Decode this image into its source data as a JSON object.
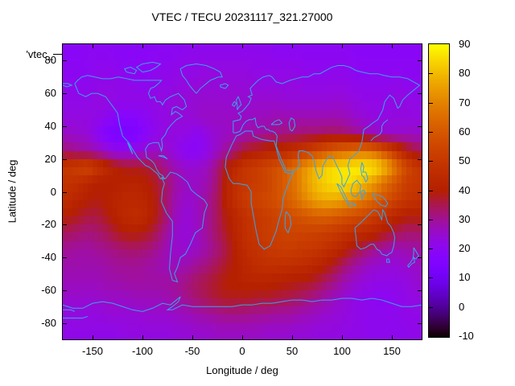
{
  "title": "VTEC / TECU 20231117_321.27000",
  "key_label": "'vtec_",
  "axes": {
    "xlabel": "Longitude / deg",
    "ylabel": "Latitude / deg",
    "x_ticks": [
      -150,
      -100,
      -50,
      0,
      50,
      100,
      150
    ],
    "y_ticks": [
      80,
      60,
      40,
      20,
      0,
      -20,
      -40,
      -60,
      -80
    ],
    "x_range": [
      -180,
      180
    ],
    "y_range": [
      -90,
      90
    ]
  },
  "colorbar": {
    "ticks": [
      90,
      80,
      70,
      60,
      50,
      40,
      30,
      20,
      10,
      0,
      -10
    ],
    "range": [
      -10,
      90
    ],
    "palette": "gnuplot default (rgbformulae 7,5,15): black-purple-violet-magenta-red-orange-yellow"
  },
  "map": {
    "coastline_color": "#38a5e8"
  },
  "chart_data": {
    "type": "heatmap",
    "title": "VTEC / TECU 20231117_321.27000",
    "xlabel": "Longitude / deg",
    "ylabel": "Latitude / deg",
    "xlim": [
      -180,
      180
    ],
    "ylim": [
      -90,
      90
    ],
    "zlim": [
      -10,
      90
    ],
    "units": "TECU",
    "lon_centers": [
      -175,
      -165,
      -155,
      -145,
      -135,
      -125,
      -115,
      -105,
      -95,
      -85,
      -75,
      -65,
      -55,
      -45,
      -35,
      -25,
      -15,
      -5,
      5,
      15,
      25,
      35,
      45,
      55,
      65,
      75,
      85,
      95,
      105,
      115,
      125,
      135,
      145,
      155,
      165,
      175
    ],
    "lat_centers": [
      85,
      75,
      65,
      55,
      45,
      35,
      25,
      15,
      5,
      -5,
      -15,
      -25,
      -35,
      -45,
      -55,
      -65,
      -75,
      -85
    ],
    "values": [
      [
        19,
        19,
        20,
        20,
        20,
        19,
        19,
        19,
        19,
        20,
        20,
        20,
        21,
        21,
        21,
        21,
        21,
        21,
        21,
        21,
        21,
        20,
        20,
        20,
        20,
        20,
        20,
        20,
        20,
        19,
        19,
        19,
        19,
        19,
        19,
        19
      ],
      [
        20,
        20,
        20,
        21,
        21,
        21,
        20,
        20,
        20,
        21,
        21,
        22,
        22,
        22,
        23,
        23,
        23,
        23,
        23,
        22,
        22,
        22,
        22,
        22,
        21,
        21,
        21,
        21,
        21,
        20,
        20,
        20,
        20,
        20,
        20,
        20
      ],
      [
        21,
        21,
        21,
        22,
        22,
        22,
        22,
        21,
        21,
        22,
        22,
        23,
        23,
        24,
        24,
        24,
        24,
        24,
        24,
        23,
        23,
        23,
        23,
        23,
        22,
        22,
        22,
        22,
        22,
        21,
        21,
        21,
        21,
        22,
        21,
        21
      ],
      [
        22,
        22,
        22,
        23,
        23,
        22,
        22,
        22,
        22,
        23,
        23,
        24,
        24,
        25,
        25,
        25,
        25,
        25,
        25,
        25,
        25,
        25,
        24,
        24,
        24,
        24,
        24,
        25,
        24,
        23,
        22,
        22,
        22,
        23,
        23,
        22
      ],
      [
        23,
        23,
        23,
        22,
        20,
        18,
        17,
        18,
        20,
        22,
        23,
        24,
        24,
        25,
        26,
        26,
        26,
        26,
        26,
        27,
        27,
        28,
        28,
        28,
        28,
        28,
        28,
        28,
        27,
        25,
        24,
        23,
        23,
        23,
        23,
        23
      ],
      [
        26,
        25,
        24,
        20,
        15,
        13,
        13,
        15,
        19,
        22,
        23,
        23,
        22,
        20,
        23,
        25,
        26,
        27,
        28,
        29,
        30,
        31,
        32,
        32,
        33,
        33,
        34,
        34,
        33,
        31,
        28,
        26,
        25,
        25,
        26,
        26
      ],
      [
        32,
        30,
        29,
        27,
        24,
        22,
        22,
        23,
        25,
        26,
        25,
        22,
        19,
        19,
        22,
        26,
        30,
        34,
        38,
        40,
        42,
        43,
        45,
        48,
        52,
        56,
        60,
        64,
        66,
        68,
        68,
        64,
        56,
        48,
        40,
        35
      ],
      [
        50,
        53,
        55,
        50,
        44,
        40,
        38,
        38,
        37,
        34,
        30,
        27,
        25,
        25,
        27,
        32,
        40,
        46,
        50,
        52,
        55,
        58,
        62,
        68,
        75,
        80,
        84,
        86,
        87,
        88,
        88,
        86,
        78,
        66,
        56,
        50
      ],
      [
        48,
        46,
        43,
        40,
        40,
        41,
        42,
        42,
        40,
        37,
        33,
        28,
        26,
        26,
        28,
        33,
        42,
        48,
        50,
        52,
        54,
        58,
        63,
        68,
        76,
        81,
        84,
        86,
        86,
        83,
        78,
        72,
        64,
        58,
        52,
        50
      ],
      [
        45,
        42,
        40,
        39,
        41,
        43,
        44,
        44,
        42,
        38,
        32,
        27,
        25,
        26,
        30,
        34,
        42,
        48,
        52,
        54,
        56,
        58,
        62,
        66,
        72,
        76,
        78,
        77,
        74,
        70,
        66,
        62,
        57,
        53,
        49,
        47
      ],
      [
        40,
        38,
        36,
        36,
        39,
        42,
        45,
        46,
        43,
        38,
        32,
        26,
        24,
        26,
        30,
        34,
        40,
        44,
        48,
        50,
        52,
        54,
        56,
        58,
        60,
        62,
        62,
        60,
        58,
        56,
        54,
        50,
        46,
        42,
        40,
        40
      ],
      [
        34,
        33,
        32,
        33,
        35,
        38,
        40,
        40,
        38,
        34,
        29,
        25,
        24,
        26,
        30,
        34,
        38,
        44,
        48,
        50,
        52,
        53,
        54,
        54,
        54,
        53,
        52,
        50,
        48,
        46,
        44,
        42,
        38,
        35,
        33,
        33
      ],
      [
        30,
        29,
        29,
        30,
        31,
        32,
        33,
        33,
        32,
        30,
        27,
        25,
        25,
        26,
        29,
        32,
        36,
        42,
        46,
        48,
        50,
        51,
        52,
        51,
        50,
        49,
        47,
        44,
        40,
        36,
        33,
        30,
        28,
        27,
        28,
        29
      ],
      [
        28,
        28,
        28,
        28,
        29,
        30,
        30,
        30,
        29,
        28,
        27,
        27,
        28,
        30,
        32,
        35,
        38,
        41,
        44,
        46,
        47,
        47,
        47,
        46,
        45,
        43,
        40,
        36,
        32,
        29,
        26,
        25,
        24,
        24,
        25,
        26
      ],
      [
        27,
        27,
        27,
        27,
        28,
        28,
        29,
        29,
        29,
        29,
        29,
        30,
        32,
        34,
        36,
        38,
        40,
        41,
        42,
        42,
        42,
        41,
        40,
        39,
        38,
        36,
        33,
        30,
        27,
        25,
        23,
        22,
        22,
        22,
        23,
        25
      ],
      [
        25,
        25,
        25,
        25,
        26,
        26,
        26,
        27,
        27,
        27,
        28,
        29,
        31,
        33,
        35,
        37,
        38,
        38,
        38,
        37,
        37,
        36,
        35,
        34,
        32,
        30,
        28,
        26,
        24,
        22,
        21,
        20,
        20,
        21,
        22,
        23
      ],
      [
        23,
        23,
        23,
        23,
        24,
        24,
        24,
        24,
        25,
        25,
        25,
        26,
        27,
        28,
        29,
        30,
        31,
        31,
        31,
        30,
        30,
        29,
        29,
        28,
        27,
        26,
        25,
        24,
        23,
        22,
        21,
        21,
        21,
        21,
        22,
        22
      ],
      [
        22,
        22,
        22,
        22,
        22,
        22,
        23,
        23,
        23,
        23,
        23,
        24,
        24,
        25,
        25,
        26,
        26,
        26,
        26,
        26,
        25,
        25,
        25,
        24,
        24,
        23,
        23,
        23,
        22,
        22,
        21,
        21,
        21,
        21,
        21,
        22
      ]
    ]
  }
}
